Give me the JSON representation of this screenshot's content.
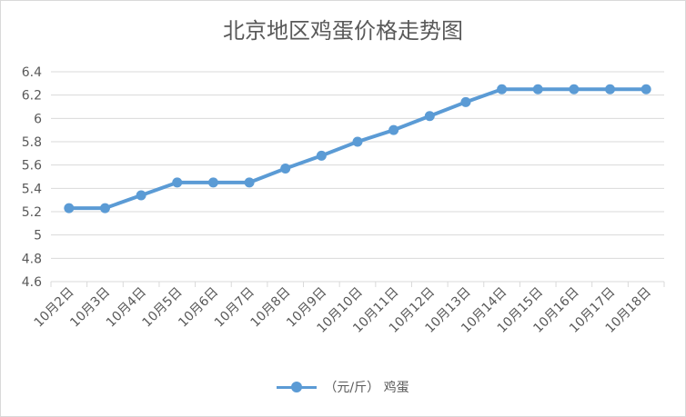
{
  "chart_data": {
    "type": "line",
    "title": "北京地区鸡蛋价格走势图",
    "categories": [
      "10月2日",
      "10月3日",
      "10月4日",
      "10月5日",
      "10月6日",
      "10月7日",
      "10月8日",
      "10月9日",
      "10月10日",
      "10月11日",
      "10月12日",
      "10月13日",
      "10月14日",
      "10月15日",
      "10月16日",
      "10月17日",
      "10月18日"
    ],
    "series": [
      {
        "name": "（元/斤） 鸡蛋",
        "values": [
          5.23,
          5.23,
          5.34,
          5.45,
          5.45,
          5.45,
          5.57,
          5.68,
          5.8,
          5.9,
          6.02,
          6.14,
          6.25,
          6.25,
          6.25,
          6.25,
          6.25
        ]
      }
    ],
    "yticks": [
      "4.6",
      "4.8",
      "5",
      "5.2",
      "5.4",
      "5.6",
      "5.8",
      "6",
      "6.2",
      "6.4"
    ],
    "ylim": [
      4.6,
      6.4
    ],
    "grid": true,
    "legend_position": "bottom",
    "colors": {
      "line": "#5b9bd5",
      "grid": "#d9d9d9",
      "text": "#595959"
    }
  }
}
